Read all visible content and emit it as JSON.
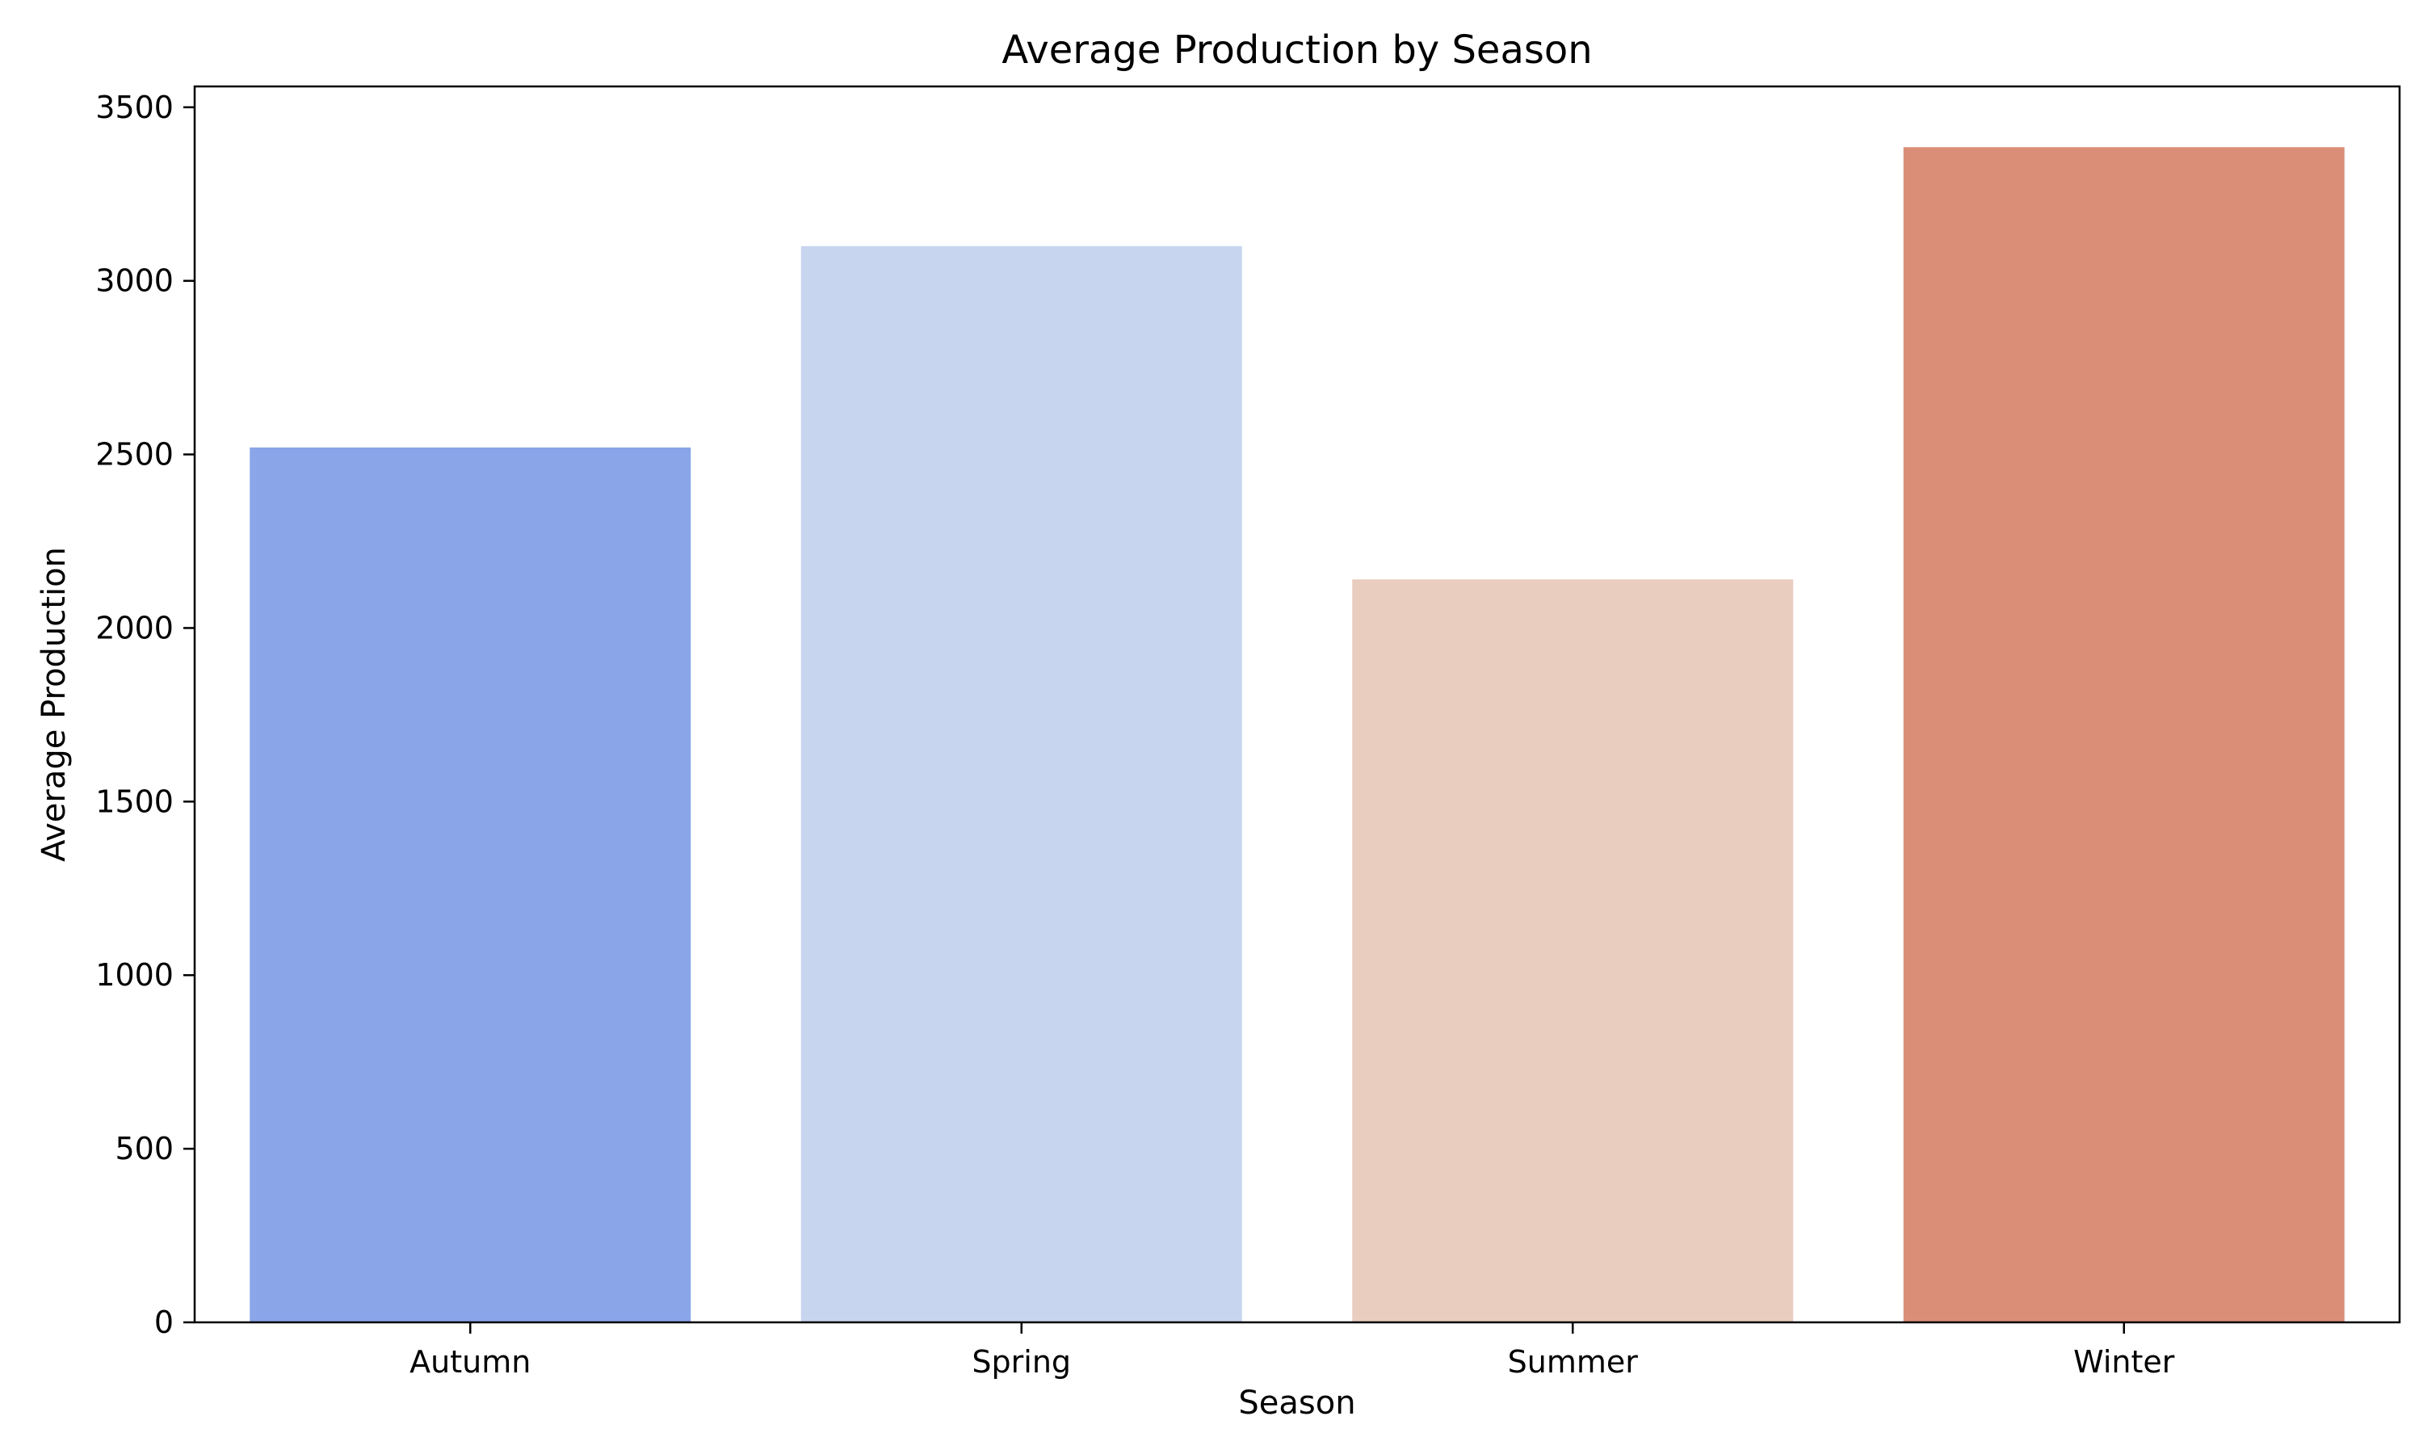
{
  "chart_data": {
    "type": "bar",
    "title": "Average Production by Season",
    "xlabel": "Season",
    "ylabel": "Average Production",
    "categories": [
      "Autumn",
      "Spring",
      "Summer",
      "Winter"
    ],
    "values": [
      2520,
      3100,
      2140,
      3385
    ],
    "colors": [
      "#8aa5e8",
      "#c7d5ef",
      "#e9cdbf",
      "#db8e77"
    ],
    "ylim": [
      0,
      3560
    ],
    "yticks": [
      0,
      500,
      1000,
      1500,
      2000,
      2500,
      3000,
      3500
    ],
    "grid": false,
    "legend": "none"
  }
}
